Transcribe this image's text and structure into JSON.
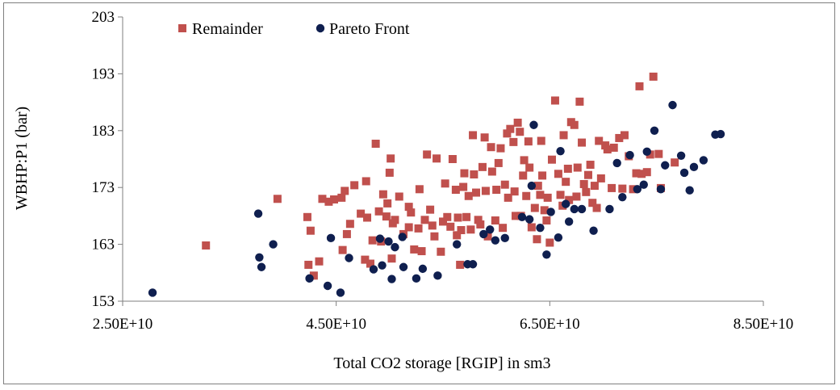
{
  "chart_data": {
    "type": "scatter",
    "title": "",
    "xlabel": "Total CO2 storage [RGIP] in sm3",
    "ylabel": "WBHP:P1 (bar)",
    "xlim": [
      25000000000,
      85000000000
    ],
    "ylim": [
      153,
      203
    ],
    "x_ticks": [
      25000000000,
      45000000000,
      65000000000,
      85000000000
    ],
    "x_tick_labels": [
      "2.50E+10",
      "4.50E+10",
      "6.50E+10",
      "8.50E+10"
    ],
    "y_ticks": [
      153,
      163,
      173,
      183,
      193,
      203
    ],
    "y_tick_labels": [
      "153",
      "163",
      "173",
      "183",
      "193",
      "203"
    ],
    "grid": false,
    "legend_position": "top-left",
    "series": [
      {
        "name": "Remainder",
        "color": "#c0504d",
        "marker": "square",
        "points": [
          [
            32800000000,
            162.8
          ],
          [
            39500000000,
            171.0
          ],
          [
            42300000000,
            167.8
          ],
          [
            42600000000,
            165.4
          ],
          [
            42400000000,
            159.4
          ],
          [
            42900000000,
            157.5
          ],
          [
            43400000000,
            160.0
          ],
          [
            43700000000,
            171.0
          ],
          [
            44300000000,
            170.5
          ],
          [
            44800000000,
            170.9
          ],
          [
            45500000000,
            171.2
          ],
          [
            45600000000,
            162.0
          ],
          [
            45800000000,
            172.4
          ],
          [
            46000000000,
            164.8
          ],
          [
            46300000000,
            166.6
          ],
          [
            46700000000,
            173.4
          ],
          [
            47300000000,
            168.4
          ],
          [
            47700000000,
            160.3
          ],
          [
            47900000000,
            167.7
          ],
          [
            47800000000,
            174.1
          ],
          [
            48200000000,
            159.6
          ],
          [
            48400000000,
            163.7
          ],
          [
            48700000000,
            180.7
          ],
          [
            49000000000,
            168.8
          ],
          [
            49200000000,
            163.5
          ],
          [
            49400000000,
            171.8
          ],
          [
            49700000000,
            167.9
          ],
          [
            49800000000,
            170.2
          ],
          [
            50000000000,
            175.6
          ],
          [
            50100000000,
            178.1
          ],
          [
            50200000000,
            160.5
          ],
          [
            50300000000,
            166.7
          ],
          [
            50500000000,
            167.3
          ],
          [
            50900000000,
            171.4
          ],
          [
            51300000000,
            164.8
          ],
          [
            51800000000,
            169.6
          ],
          [
            51800000000,
            166.0
          ],
          [
            52000000000,
            168.6
          ],
          [
            52300000000,
            162.1
          ],
          [
            52800000000,
            172.7
          ],
          [
            52700000000,
            165.8
          ],
          [
            53000000000,
            161.8
          ],
          [
            53300000000,
            167.3
          ],
          [
            53500000000,
            178.8
          ],
          [
            53800000000,
            169.1
          ],
          [
            54000000000,
            166.3
          ],
          [
            54200000000,
            164.4
          ],
          [
            54400000000,
            178.1
          ],
          [
            54800000000,
            161.7
          ],
          [
            55000000000,
            167.0
          ],
          [
            55200000000,
            173.7
          ],
          [
            55400000000,
            167.8
          ],
          [
            55700000000,
            166.1
          ],
          [
            55900000000,
            178.0
          ],
          [
            56200000000,
            172.6
          ],
          [
            56300000000,
            164.6
          ],
          [
            56400000000,
            167.7
          ],
          [
            56600000000,
            159.4
          ],
          [
            56700000000,
            165.5
          ],
          [
            56900000000,
            173.1
          ],
          [
            57000000000,
            175.5
          ],
          [
            57200000000,
            167.8
          ],
          [
            57400000000,
            171.5
          ],
          [
            57600000000,
            165.6
          ],
          [
            57800000000,
            182.2
          ],
          [
            57900000000,
            175.3
          ],
          [
            58100000000,
            172.1
          ],
          [
            58300000000,
            167.3
          ],
          [
            58500000000,
            166.5
          ],
          [
            58700000000,
            176.6
          ],
          [
            58900000000,
            181.8
          ],
          [
            59000000000,
            172.4
          ],
          [
            59200000000,
            164.4
          ],
          [
            59500000000,
            180.1
          ],
          [
            59600000000,
            175.8
          ],
          [
            59900000000,
            167.2
          ],
          [
            60000000000,
            172.6
          ],
          [
            60200000000,
            177.3
          ],
          [
            60400000000,
            179.9
          ],
          [
            60600000000,
            165.9
          ],
          [
            60800000000,
            173.5
          ],
          [
            61000000000,
            182.5
          ],
          [
            61100000000,
            171.2
          ],
          [
            61300000000,
            183.3
          ],
          [
            61600000000,
            181.0
          ],
          [
            61700000000,
            172.3
          ],
          [
            61800000000,
            168.0
          ],
          [
            62000000000,
            184.4
          ],
          [
            62200000000,
            182.8
          ],
          [
            62300000000,
            168.0
          ],
          [
            62500000000,
            175.1
          ],
          [
            62600000000,
            177.8
          ],
          [
            62800000000,
            171.5
          ],
          [
            63000000000,
            181.1
          ],
          [
            63100000000,
            176.5
          ],
          [
            63300000000,
            166.0
          ],
          [
            63600000000,
            169.4
          ],
          [
            63800000000,
            163.9
          ],
          [
            63900000000,
            173.3
          ],
          [
            64100000000,
            171.7
          ],
          [
            64200000000,
            181.2
          ],
          [
            64300000000,
            175.1
          ],
          [
            64500000000,
            169.0
          ],
          [
            64700000000,
            167.2
          ],
          [
            64800000000,
            171.2
          ],
          [
            65000000000,
            163.3
          ],
          [
            65200000000,
            177.9
          ],
          [
            65500000000,
            188.3
          ],
          [
            65800000000,
            175.4
          ],
          [
            66000000000,
            171.7
          ],
          [
            66200000000,
            169.8
          ],
          [
            66300000000,
            182.2
          ],
          [
            66500000000,
            174.0
          ],
          [
            66700000000,
            176.3
          ],
          [
            66800000000,
            170.8
          ],
          [
            67000000000,
            184.5
          ],
          [
            67300000000,
            184.0
          ],
          [
            67500000000,
            171.4
          ],
          [
            67600000000,
            176.5
          ],
          [
            67800000000,
            188.1
          ],
          [
            68000000000,
            180.9
          ],
          [
            68200000000,
            173.6
          ],
          [
            68400000000,
            172.2
          ],
          [
            68600000000,
            175.2
          ],
          [
            68800000000,
            177.0
          ],
          [
            69000000000,
            170.3
          ],
          [
            69200000000,
            173.3
          ],
          [
            69400000000,
            169.4
          ],
          [
            69600000000,
            181.2
          ],
          [
            69800000000,
            174.6
          ],
          [
            70200000000,
            180.4
          ],
          [
            70400000000,
            179.7
          ],
          [
            70800000000,
            172.9
          ],
          [
            71000000000,
            180.0
          ],
          [
            71500000000,
            181.7
          ],
          [
            71800000000,
            172.8
          ],
          [
            72000000000,
            182.2
          ],
          [
            72400000000,
            178.5
          ],
          [
            72800000000,
            172.7
          ],
          [
            73100000000,
            175.5
          ],
          [
            73400000000,
            190.8
          ],
          [
            73600000000,
            175.4
          ],
          [
            74100000000,
            175.7
          ],
          [
            74400000000,
            178.8
          ],
          [
            74700000000,
            192.5
          ],
          [
            75200000000,
            178.9
          ],
          [
            75400000000,
            172.9
          ],
          [
            76700000000,
            177.4
          ]
        ]
      },
      {
        "name": "Pareto Front",
        "color": "#0f1f4f",
        "marker": "circle",
        "points": [
          [
            27800000000,
            154.5
          ],
          [
            37700000000,
            168.4
          ],
          [
            37800000000,
            160.7
          ],
          [
            38000000000,
            159.0
          ],
          [
            39100000000,
            163.0
          ],
          [
            42500000000,
            157.0
          ],
          [
            44200000000,
            155.7
          ],
          [
            44500000000,
            164.1
          ],
          [
            45400000000,
            154.5
          ],
          [
            46200000000,
            160.6
          ],
          [
            48500000000,
            158.6
          ],
          [
            49100000000,
            164.0
          ],
          [
            49300000000,
            159.3
          ],
          [
            49900000000,
            163.5
          ],
          [
            50200000000,
            156.9
          ],
          [
            50500000000,
            162.5
          ],
          [
            51200000000,
            164.3
          ],
          [
            51300000000,
            159.0
          ],
          [
            52500000000,
            157.0
          ],
          [
            53100000000,
            158.7
          ],
          [
            54500000000,
            157.5
          ],
          [
            56300000000,
            163.0
          ],
          [
            57300000000,
            159.5
          ],
          [
            57800000000,
            159.5
          ],
          [
            58800000000,
            164.8
          ],
          [
            59400000000,
            165.6
          ],
          [
            59900000000,
            163.7
          ],
          [
            60800000000,
            164.1
          ],
          [
            62400000000,
            167.8
          ],
          [
            63100000000,
            167.4
          ],
          [
            63300000000,
            173.3
          ],
          [
            63500000000,
            184.0
          ],
          [
            64100000000,
            165.9
          ],
          [
            64700000000,
            161.2
          ],
          [
            65100000000,
            168.7
          ],
          [
            65800000000,
            164.2
          ],
          [
            66000000000,
            179.4
          ],
          [
            66500000000,
            170.1
          ],
          [
            66800000000,
            167.0
          ],
          [
            67300000000,
            169.2
          ],
          [
            68000000000,
            169.2
          ],
          [
            69100000000,
            165.4
          ],
          [
            70600000000,
            169.2
          ],
          [
            71300000000,
            177.3
          ],
          [
            71800000000,
            171.3
          ],
          [
            72500000000,
            178.7
          ],
          [
            73200000000,
            172.7
          ],
          [
            73800000000,
            173.5
          ],
          [
            74100000000,
            179.3
          ],
          [
            74800000000,
            183.0
          ],
          [
            75400000000,
            172.7
          ],
          [
            75800000000,
            176.9
          ],
          [
            76500000000,
            187.5
          ],
          [
            77300000000,
            178.6
          ],
          [
            77600000000,
            175.6
          ],
          [
            78100000000,
            172.5
          ],
          [
            78500000000,
            176.6
          ],
          [
            79400000000,
            177.8
          ],
          [
            80500000000,
            182.3
          ],
          [
            81000000000,
            182.4
          ]
        ]
      }
    ]
  }
}
